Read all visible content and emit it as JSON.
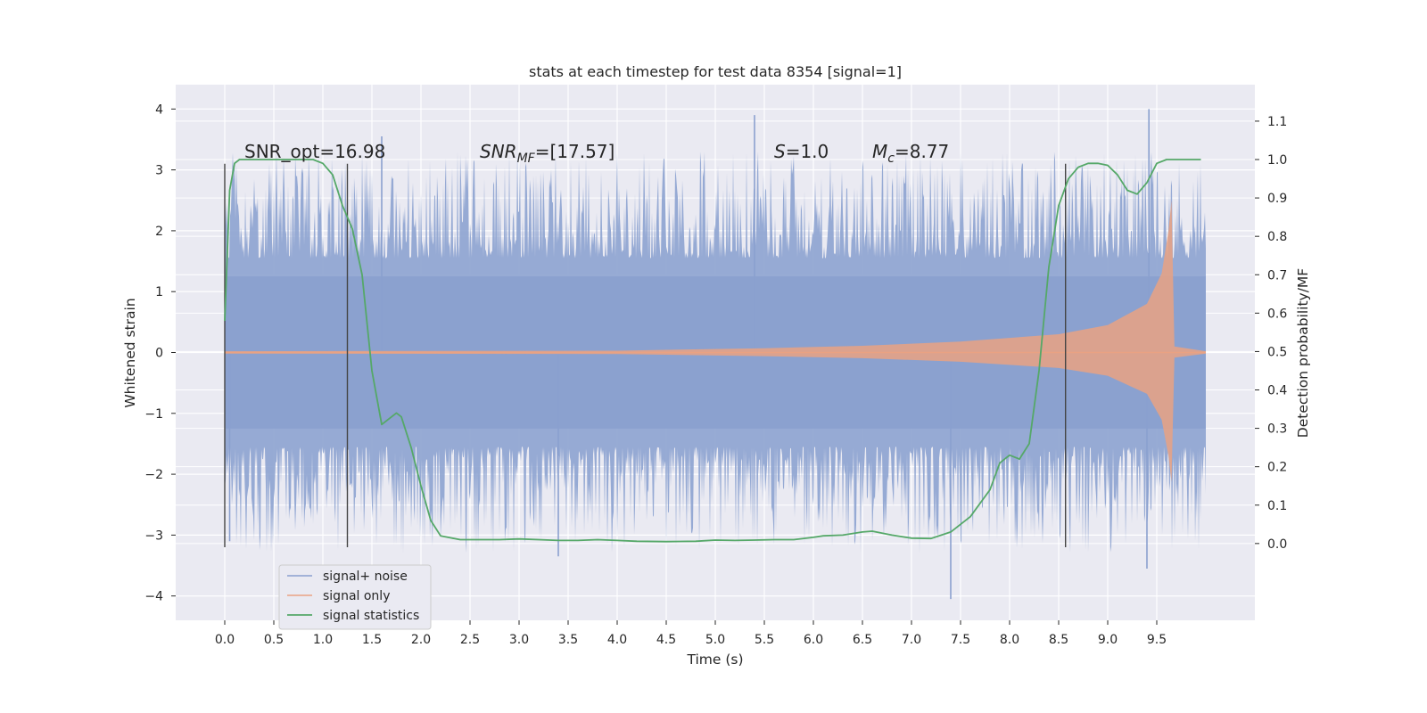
{
  "chart_data": {
    "type": "line",
    "title": "stats at each timestep for test data 8354 [signal=1]",
    "xlabel": "Time (s)",
    "ylabel": "Whitened strain",
    "ylabel_right": "Detection probability/MF",
    "xlim": [
      -0.5,
      10.5
    ],
    "ylim": [
      -4.4,
      4.4
    ],
    "ylim_right": [
      -0.2,
      1.195
    ],
    "x_ticks": [
      "0.0",
      "0.5",
      "1.0",
      "1.5",
      "2.0",
      "2.5",
      "3.0",
      "3.5",
      "4.0",
      "4.5",
      "5.0",
      "5.5",
      "6.0",
      "6.5",
      "7.0",
      "7.5",
      "8.0",
      "8.5",
      "9.0",
      "9.5"
    ],
    "y_ticks": [
      "4",
      "3",
      "2",
      "1",
      "0",
      "−1",
      "−2",
      "−3",
      "−4"
    ],
    "y_ticks_right": [
      "1.1",
      "1.0",
      "0.9",
      "0.8",
      "0.7",
      "0.6",
      "0.5",
      "0.4",
      "0.3",
      "0.2",
      "0.1",
      "0.0"
    ],
    "grid": true,
    "legend_position": "lower-left",
    "annotations": [
      {
        "text": "SNR_opt=16.98",
        "x": 0.2,
        "y": 3.2
      },
      {
        "text": "SNR_MF=[17.57]",
        "x": 2.6,
        "y": 3.2
      },
      {
        "text": "S=1.0",
        "x": 5.6,
        "y": 3.2
      },
      {
        "text": "M_c=8.77",
        "x": 6.6,
        "y": 3.2
      }
    ],
    "vertical_lines": [
      0.0,
      1.25,
      8.57
    ],
    "vertical_line_ymin": -3.2,
    "vertical_line_ymax": 3.1,
    "series": [
      {
        "name": "signal+ noise",
        "axis": "left",
        "style": "dense noise band",
        "x_range": [
          0.0,
          10.0
        ],
        "core_amplitude": 1.25,
        "typical_peak_amplitude": 2.2,
        "extreme_values": [
          {
            "x": 0.05,
            "y": -3.1
          },
          {
            "x": 1.6,
            "y": 3.55
          },
          {
            "x": 3.4,
            "y": -3.35
          },
          {
            "x": 5.4,
            "y": 3.9
          },
          {
            "x": 7.4,
            "y": -4.05
          },
          {
            "x": 9.42,
            "y": 4.0
          },
          {
            "x": 9.4,
            "y": -3.55
          }
        ]
      },
      {
        "name": "signal only",
        "axis": "left",
        "style": "chirp",
        "x_range": [
          0.0,
          10.0
        ],
        "merger_time": 9.65,
        "envelope": [
          {
            "x": 0.0,
            "y": 0.02
          },
          {
            "x": 4.0,
            "y": 0.03
          },
          {
            "x": 5.5,
            "y": 0.07
          },
          {
            "x": 6.5,
            "y": 0.11
          },
          {
            "x": 7.5,
            "y": 0.18
          },
          {
            "x": 8.5,
            "y": 0.3
          },
          {
            "x": 9.0,
            "y": 0.45
          },
          {
            "x": 9.4,
            "y": 0.8
          },
          {
            "x": 9.55,
            "y": 1.3
          },
          {
            "x": 9.62,
            "y": 2.0
          },
          {
            "x": 9.65,
            "y": 2.5
          },
          {
            "x": 9.68,
            "y": 0.1
          },
          {
            "x": 10.0,
            "y": 0.02
          }
        ]
      },
      {
        "name": "signal statistics",
        "axis": "right",
        "x": [
          0.0,
          0.05,
          0.1,
          0.15,
          0.2,
          0.3,
          0.5,
          0.7,
          0.9,
          1.0,
          1.1,
          1.2,
          1.3,
          1.4,
          1.5,
          1.6,
          1.7,
          1.75,
          1.8,
          1.9,
          2.0,
          2.1,
          2.2,
          2.3,
          2.4,
          2.6,
          2.8,
          3.0,
          3.2,
          3.4,
          3.6,
          3.8,
          4.0,
          4.2,
          4.5,
          4.8,
          5.0,
          5.2,
          5.4,
          5.6,
          5.8,
          6.0,
          6.1,
          6.3,
          6.5,
          6.6,
          6.8,
          7.0,
          7.2,
          7.4,
          7.6,
          7.8,
          7.9,
          8.0,
          8.1,
          8.2,
          8.3,
          8.4,
          8.5,
          8.6,
          8.7,
          8.8,
          8.9,
          9.0,
          9.1,
          9.2,
          9.3,
          9.4,
          9.5,
          9.6,
          9.7,
          9.8,
          9.95
        ],
        "y": [
          0.58,
          0.92,
          0.99,
          1.0,
          1.0,
          1.0,
          1.0,
          1.0,
          1.0,
          0.99,
          0.96,
          0.88,
          0.82,
          0.7,
          0.45,
          0.31,
          0.33,
          0.34,
          0.33,
          0.25,
          0.15,
          0.06,
          0.02,
          0.015,
          0.01,
          0.01,
          0.01,
          0.012,
          0.01,
          0.008,
          0.008,
          0.01,
          0.008,
          0.006,
          0.005,
          0.006,
          0.009,
          0.008,
          0.009,
          0.01,
          0.01,
          0.016,
          0.02,
          0.022,
          0.03,
          0.032,
          0.022,
          0.014,
          0.013,
          0.03,
          0.07,
          0.14,
          0.21,
          0.23,
          0.22,
          0.26,
          0.45,
          0.72,
          0.88,
          0.95,
          0.98,
          0.99,
          0.99,
          0.985,
          0.96,
          0.92,
          0.91,
          0.94,
          0.99,
          1.0,
          1.0,
          1.0,
          1.0
        ]
      }
    ]
  },
  "colors": {
    "plot_background": "#eaeaf2",
    "grid": "#ffffff",
    "noise": "#8aa0cf",
    "signal": "#e9a283",
    "statistics": "#55a868",
    "vertical_line": "#444444",
    "legend_background": "#eaeaf2",
    "legend_border": "#cccccc"
  }
}
